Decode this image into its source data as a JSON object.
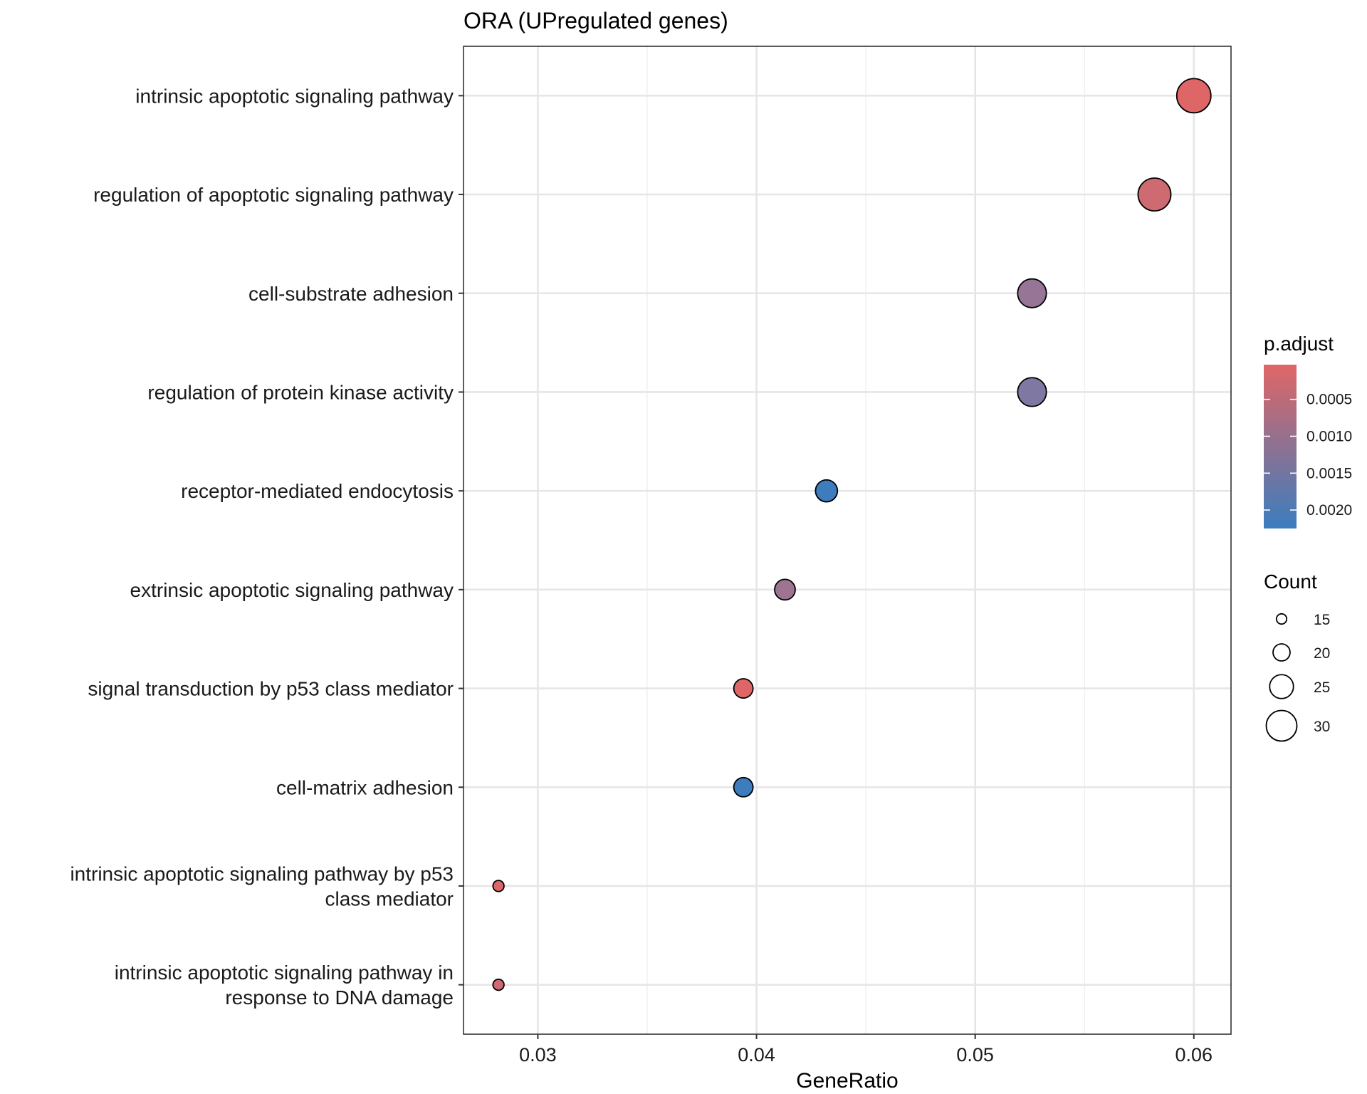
{
  "chart_data": {
    "type": "scatter",
    "title": "ORA (UPregulated genes)",
    "xlabel": "GeneRatio",
    "ylabel": "",
    "xlim": [
      0.0266,
      0.0617
    ],
    "xticks": [
      0.03,
      0.04,
      0.05,
      0.06
    ],
    "xtick_labels": [
      "0.03",
      "0.04",
      "0.05",
      "0.06"
    ],
    "categories": [
      [
        "intrinsic apoptotic signaling pathway"
      ],
      [
        "regulation of apoptotic signaling pathway"
      ],
      [
        "cell-substrate adhesion"
      ],
      [
        "regulation of protein kinase activity"
      ],
      [
        "receptor-mediated endocytosis"
      ],
      [
        "extrinsic apoptotic signaling pathway"
      ],
      [
        "signal transduction by p53 class mediator"
      ],
      [
        "cell-matrix adhesion"
      ],
      [
        "intrinsic apoptotic signaling pathway by p53",
        "class mediator"
      ],
      [
        "intrinsic apoptotic signaling pathway in",
        "response to DNA damage"
      ]
    ],
    "gene_ratio": [
      0.06,
      0.0582,
      0.0526,
      0.0526,
      0.0432,
      0.0413,
      0.0394,
      0.0394,
      0.0282,
      0.0282
    ],
    "count": [
      32,
      31,
      28,
      28,
      23,
      22,
      21,
      21,
      15,
      15
    ],
    "p_adjust": [
      5e-05,
      0.0003,
      0.0011,
      0.0014,
      0.0022,
      0.001,
      5e-05,
      0.0022,
      0.0001,
      0.0003
    ],
    "color_legend": {
      "title": "p.adjust",
      "range": [
        3e-05,
        0.00225
      ],
      "ticks": [
        0.0005,
        0.001,
        0.0015,
        0.002
      ],
      "tick_labels": [
        "0.0005",
        "0.0010",
        "0.0015",
        "0.0020"
      ],
      "low_color": "#e06666",
      "high_color": "#3a7dbf"
    },
    "size_legend": {
      "title": "Count",
      "values": [
        15,
        20,
        25,
        30
      ],
      "labels": [
        "15",
        "20",
        "25",
        "30"
      ]
    }
  }
}
